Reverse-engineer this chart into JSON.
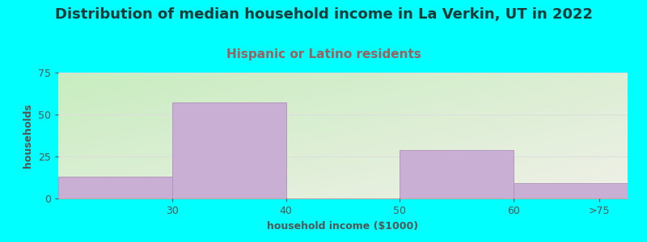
{
  "title": "Distribution of median household income in La Verkin, UT in 2022",
  "subtitle": "Hispanic or Latino residents",
  "xlabel": "household income ($1000)",
  "ylabel": "households",
  "bin_edges": [
    0,
    1,
    2,
    3,
    4,
    5
  ],
  "tick_positions": [
    0.5,
    1.5,
    2.5,
    3.5,
    4.5
  ],
  "tick_labels": [
    "30",
    "40",
    "50",
    "60",
    ">75"
  ],
  "bar_values": [
    13,
    57,
    0,
    29,
    9
  ],
  "bar_color": "#c9afd4",
  "bar_edge_color": "#b090bb",
  "ylim": [
    0,
    75
  ],
  "yticks": [
    0,
    25,
    50,
    75
  ],
  "background_color": "#00ffff",
  "plot_bg_color_topleft": "#c8edc0",
  "plot_bg_color_bottomright": "#f0f0e8",
  "title_fontsize": 13,
  "title_color": "#1a3a3a",
  "subtitle_fontsize": 11,
  "subtitle_color": "#9c6060",
  "axis_label_fontsize": 9,
  "axis_label_color": "#555555",
  "tick_fontsize": 9,
  "grid_color": "#dddddd"
}
